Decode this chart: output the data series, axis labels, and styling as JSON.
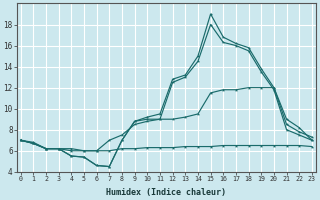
{
  "xlabel": "Humidex (Indice chaleur)",
  "bg_color": "#cce8ee",
  "line_color": "#1a6b6b",
  "grid_color": "#ffffff",
  "xlim": [
    -0.3,
    23.3
  ],
  "ylim": [
    4,
    20
  ],
  "xticks": [
    0,
    1,
    2,
    3,
    4,
    5,
    6,
    7,
    8,
    9,
    10,
    11,
    12,
    13,
    14,
    15,
    16,
    17,
    18,
    19,
    20,
    21,
    22,
    23
  ],
  "yticks": [
    4,
    6,
    8,
    10,
    12,
    14,
    16,
    18
  ],
  "line_top": [
    7.0,
    6.7,
    6.2,
    6.2,
    5.5,
    5.4,
    4.6,
    4.5,
    7.0,
    8.8,
    9.2,
    9.5,
    12.8,
    13.2,
    15.0,
    19.0,
    16.8,
    16.2,
    15.8,
    13.8,
    12.0,
    8.5,
    7.8,
    7.3
  ],
  "line_mid_upper": [
    7.0,
    6.7,
    6.2,
    6.2,
    5.5,
    5.4,
    4.6,
    4.5,
    7.0,
    8.8,
    9.0,
    9.0,
    12.5,
    13.0,
    14.5,
    18.0,
    16.3,
    16.0,
    15.5,
    13.5,
    11.8,
    8.0,
    7.5,
    7.0
  ],
  "line_mid_lower": [
    7.0,
    6.8,
    6.2,
    6.2,
    6.2,
    6.0,
    6.0,
    7.0,
    7.5,
    8.5,
    8.8,
    9.0,
    9.0,
    9.2,
    9.5,
    11.5,
    11.8,
    11.8,
    12.0,
    12.0,
    12.0,
    9.0,
    8.2,
    7.0
  ],
  "line_bot": [
    7.0,
    6.7,
    6.2,
    6.2,
    6.0,
    6.0,
    6.0,
    6.0,
    6.2,
    6.2,
    6.3,
    6.3,
    6.3,
    6.4,
    6.4,
    6.4,
    6.5,
    6.5,
    6.5,
    6.5,
    6.5,
    6.5,
    6.5,
    6.4
  ]
}
